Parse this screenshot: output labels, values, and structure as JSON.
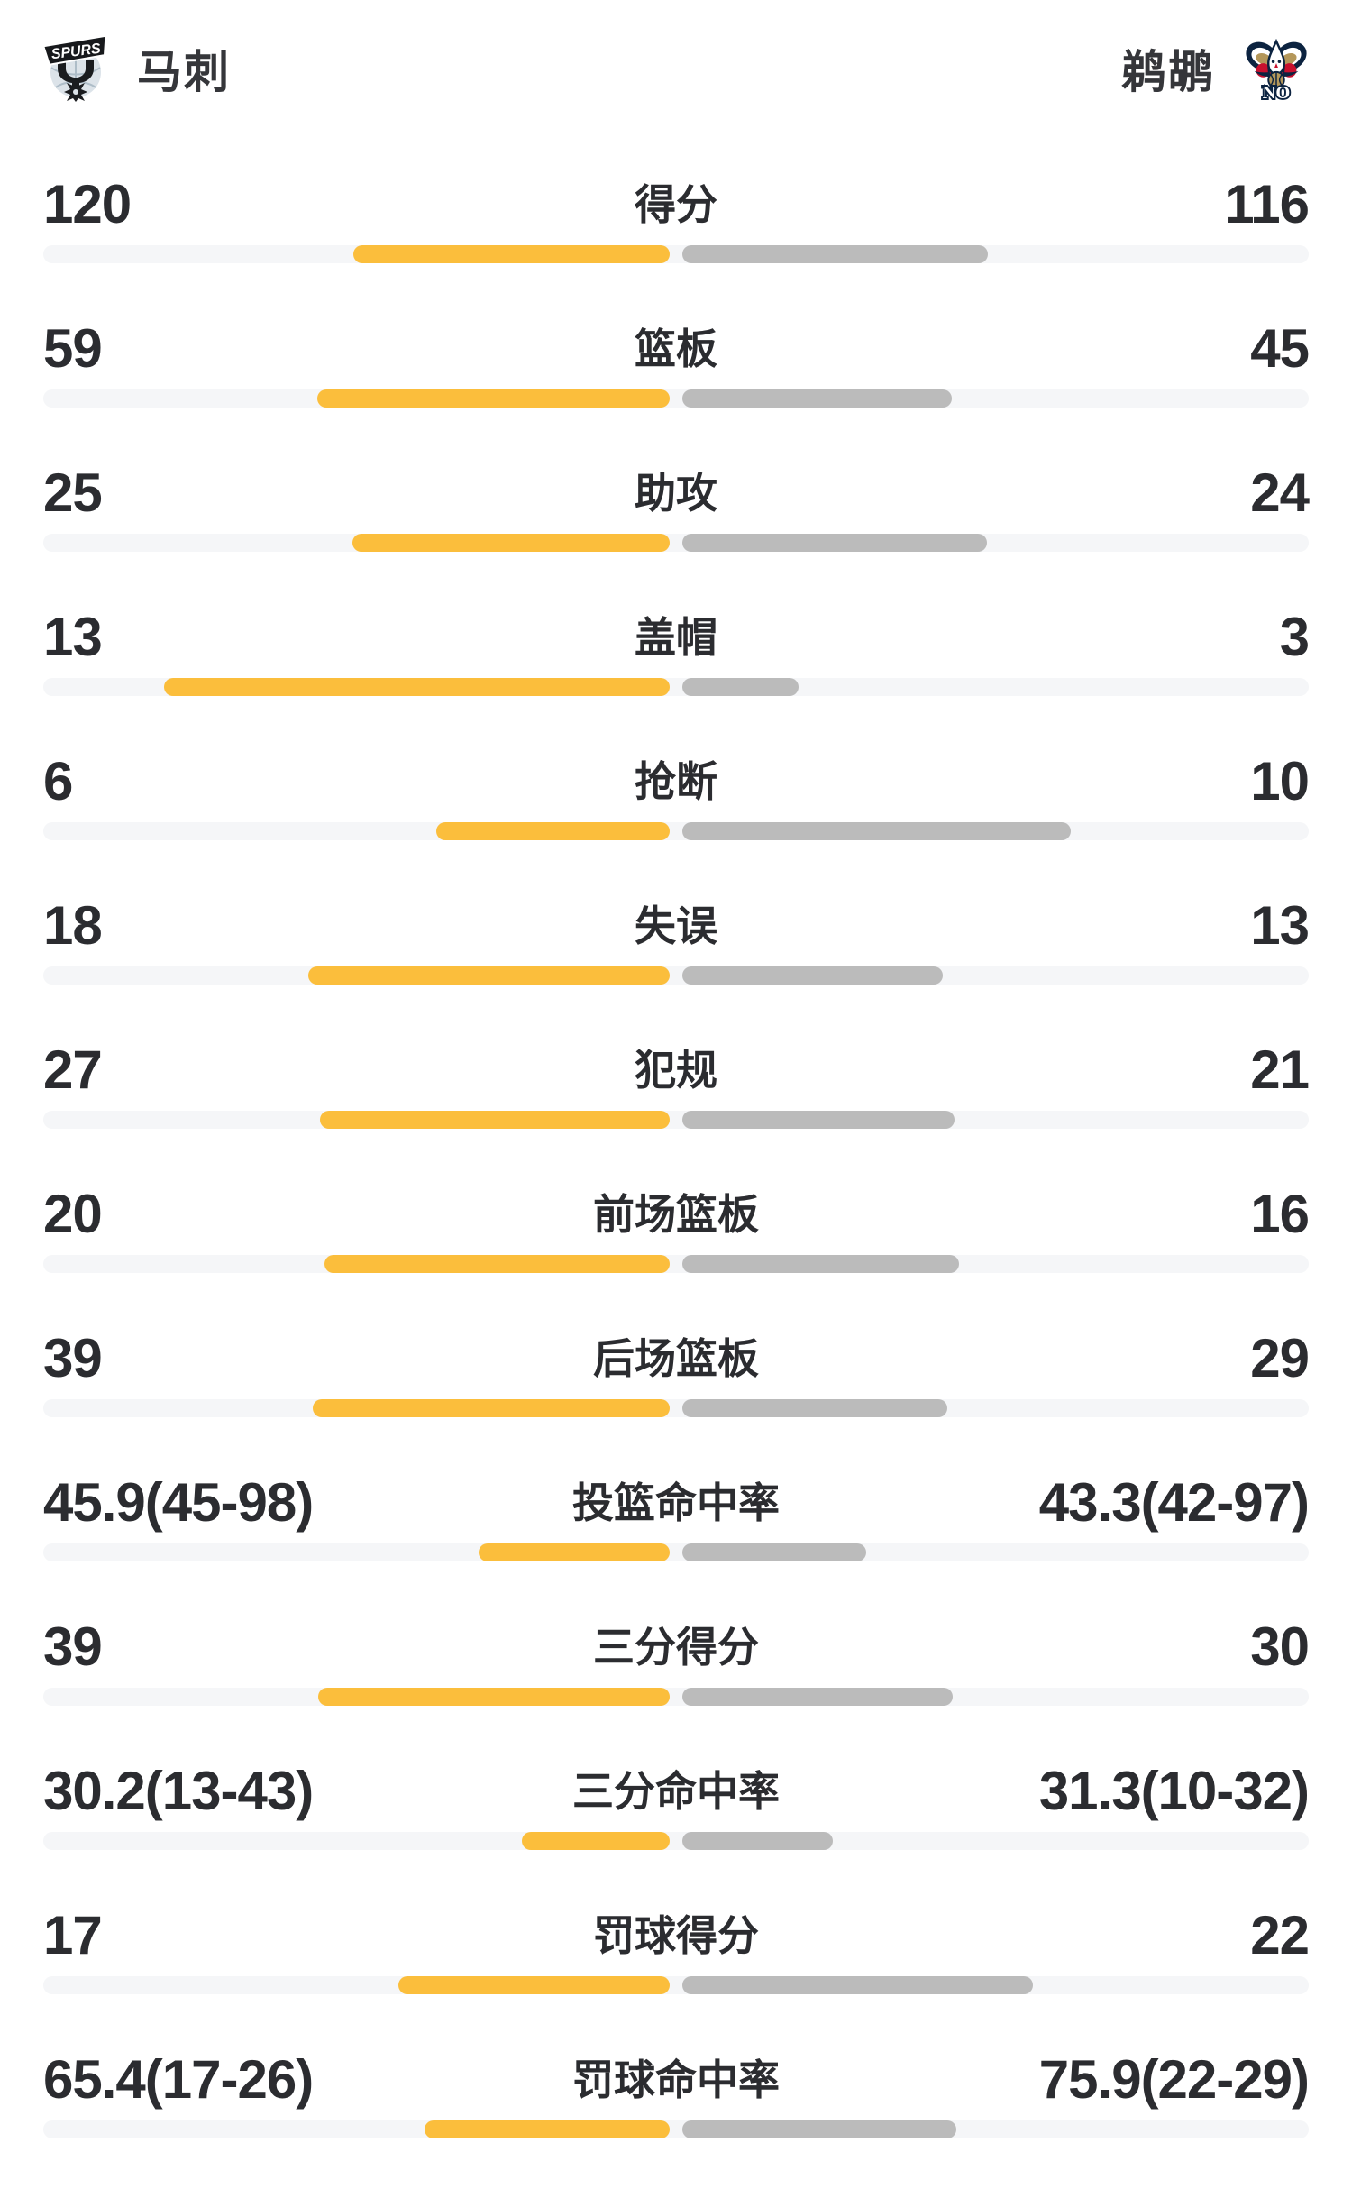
{
  "header": {
    "left_team": {
      "name": "马刺",
      "logo": "spurs-logo",
      "wordmark": "SPURS"
    },
    "right_team": {
      "name": "鹈鹕",
      "logo": "pelicans-logo",
      "wordmark": "NO"
    }
  },
  "colors": {
    "left_bar": "#FBBE3C",
    "right_bar": "#BBBBBB",
    "track": "#F5F6F8",
    "number": "#2B2C30",
    "team_name": "#35363A"
  },
  "chart_data": {
    "type": "bar",
    "legend": [
      "马刺",
      "鹈鹕"
    ],
    "rows": [
      {
        "label": "得分",
        "left": "120",
        "right": "116",
        "left_value": 120,
        "right_value": 116,
        "kind": "count"
      },
      {
        "label": "篮板",
        "left": "59",
        "right": "45",
        "left_value": 59,
        "right_value": 45,
        "kind": "count"
      },
      {
        "label": "助攻",
        "left": "25",
        "right": "24",
        "left_value": 25,
        "right_value": 24,
        "kind": "count"
      },
      {
        "label": "盖帽",
        "left": "13",
        "right": "3",
        "left_value": 13,
        "right_value": 3,
        "kind": "count"
      },
      {
        "label": "抢断",
        "left": "6",
        "right": "10",
        "left_value": 6,
        "right_value": 10,
        "kind": "count"
      },
      {
        "label": "失误",
        "left": "18",
        "right": "13",
        "left_value": 18,
        "right_value": 13,
        "kind": "count"
      },
      {
        "label": "犯规",
        "left": "27",
        "right": "21",
        "left_value": 27,
        "right_value": 21,
        "kind": "count"
      },
      {
        "label": "前场篮板",
        "left": "20",
        "right": "16",
        "left_value": 20,
        "right_value": 16,
        "kind": "count"
      },
      {
        "label": "后场篮板",
        "left": "39",
        "right": "29",
        "left_value": 39,
        "right_value": 29,
        "kind": "count"
      },
      {
        "label": "投篮命中率",
        "left": "45.9(45-98)",
        "right": "43.3(42-97)",
        "left_value": 45.9,
        "right_value": 43.3,
        "kind": "pct"
      },
      {
        "label": "三分得分",
        "left": "39",
        "right": "30",
        "left_value": 39,
        "right_value": 30,
        "kind": "count"
      },
      {
        "label": "三分命中率",
        "left": "30.2(13-43)",
        "right": "31.3(10-32)",
        "left_value": 30.2,
        "right_value": 31.3,
        "kind": "pct"
      },
      {
        "label": "罚球得分",
        "left": "17",
        "right": "22",
        "left_value": 17,
        "right_value": 22,
        "kind": "count"
      },
      {
        "label": "罚球命中率",
        "left": "65.4(17-26)",
        "right": "75.9(22-29)",
        "left_value": 65.4,
        "right_value": 75.9,
        "kind": "pct"
      }
    ]
  }
}
